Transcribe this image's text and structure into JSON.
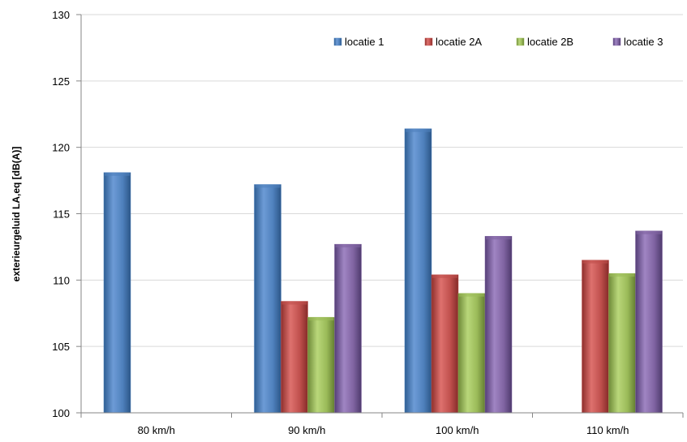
{
  "chart_data": {
    "type": "bar",
    "title": "",
    "xlabel": "",
    "ylabel": "exterieurgeluid LA,eq [dB(A)]",
    "ylim": [
      100,
      130
    ],
    "yticks": [
      100,
      105,
      110,
      115,
      120,
      125,
      130
    ],
    "categories": [
      "80 km/h",
      "90 km/h",
      "100 km/h",
      "110 km/h"
    ],
    "series": [
      {
        "name": "locatie 1",
        "color": "#4F81BD",
        "values": [
          118.1,
          117.2,
          121.4,
          null
        ]
      },
      {
        "name": "locatie 2A",
        "color": "#C0504D",
        "values": [
          null,
          108.4,
          110.4,
          111.5
        ]
      },
      {
        "name": "locatie 2B",
        "color": "#9BBB59",
        "values": [
          null,
          107.2,
          109.0,
          110.5
        ]
      },
      {
        "name": "locatie 3",
        "color": "#8064A2",
        "values": [
          null,
          112.7,
          113.3,
          113.7
        ]
      }
    ],
    "grid": true,
    "legend_position": "top-right"
  }
}
